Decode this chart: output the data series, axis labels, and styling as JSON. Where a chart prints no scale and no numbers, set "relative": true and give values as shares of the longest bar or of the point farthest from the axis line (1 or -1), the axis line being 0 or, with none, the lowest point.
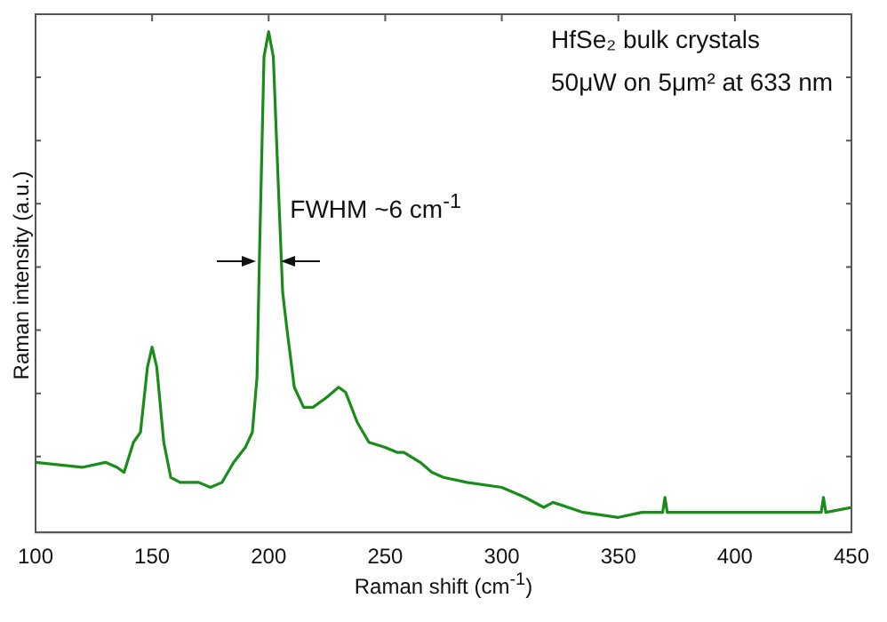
{
  "chart_data": {
    "type": "line",
    "xlabel": "Raman shift (cm$^{-1}$)",
    "ylabel": "Raman intensity (a.u.)",
    "relative": true,
    "annotations": [
      "HfSe₂ bulk crystals",
      "50μW on 5μm² at 633 nm",
      {
        "text": "FWHM ~6 cm$^{-1}$",
        "x": 200,
        "y": 0.5
      }
    ],
    "xlim": [
      100,
      450
    ],
    "xticks": [
      100,
      150,
      200,
      250,
      300,
      350,
      400,
      450
    ],
    "grid": false,
    "legend": false,
    "marker": "none",
    "line_style": "solid",
    "series": [
      {
        "color": "#1a8c1a",
        "x": [
          100,
          120,
          130,
          135,
          138,
          142,
          145,
          148,
          150,
          152,
          155,
          158,
          162,
          170,
          175,
          180,
          185,
          190,
          193,
          195,
          196,
          198,
          200,
          202,
          204,
          206,
          208,
          211,
          215,
          219,
          225,
          230,
          233,
          238,
          243,
          250,
          255,
          258,
          265,
          270,
          275,
          285,
          300,
          310,
          318,
          322,
          335,
          350,
          360,
          369,
          370,
          371,
          390,
          410,
          437,
          438,
          439,
          450
        ],
        "values": [
          0.14,
          0.13,
          0.14,
          0.13,
          0.12,
          0.18,
          0.2,
          0.33,
          0.37,
          0.33,
          0.18,
          0.11,
          0.1,
          0.1,
          0.09,
          0.1,
          0.14,
          0.17,
          0.2,
          0.31,
          0.54,
          0.95,
          1,
          0.95,
          0.71,
          0.48,
          0.4,
          0.29,
          0.25,
          0.25,
          0.27,
          0.29,
          0.28,
          0.22,
          0.18,
          0.17,
          0.16,
          0.16,
          0.14,
          0.12,
          0.11,
          0.1,
          0.09,
          0.07,
          0.05,
          0.06,
          0.04,
          0.03,
          0.04,
          0.04,
          0.07,
          0.04,
          0.04,
          0.04,
          0.04,
          0.07,
          0.04,
          0.05
        ]
      }
    ]
  }
}
